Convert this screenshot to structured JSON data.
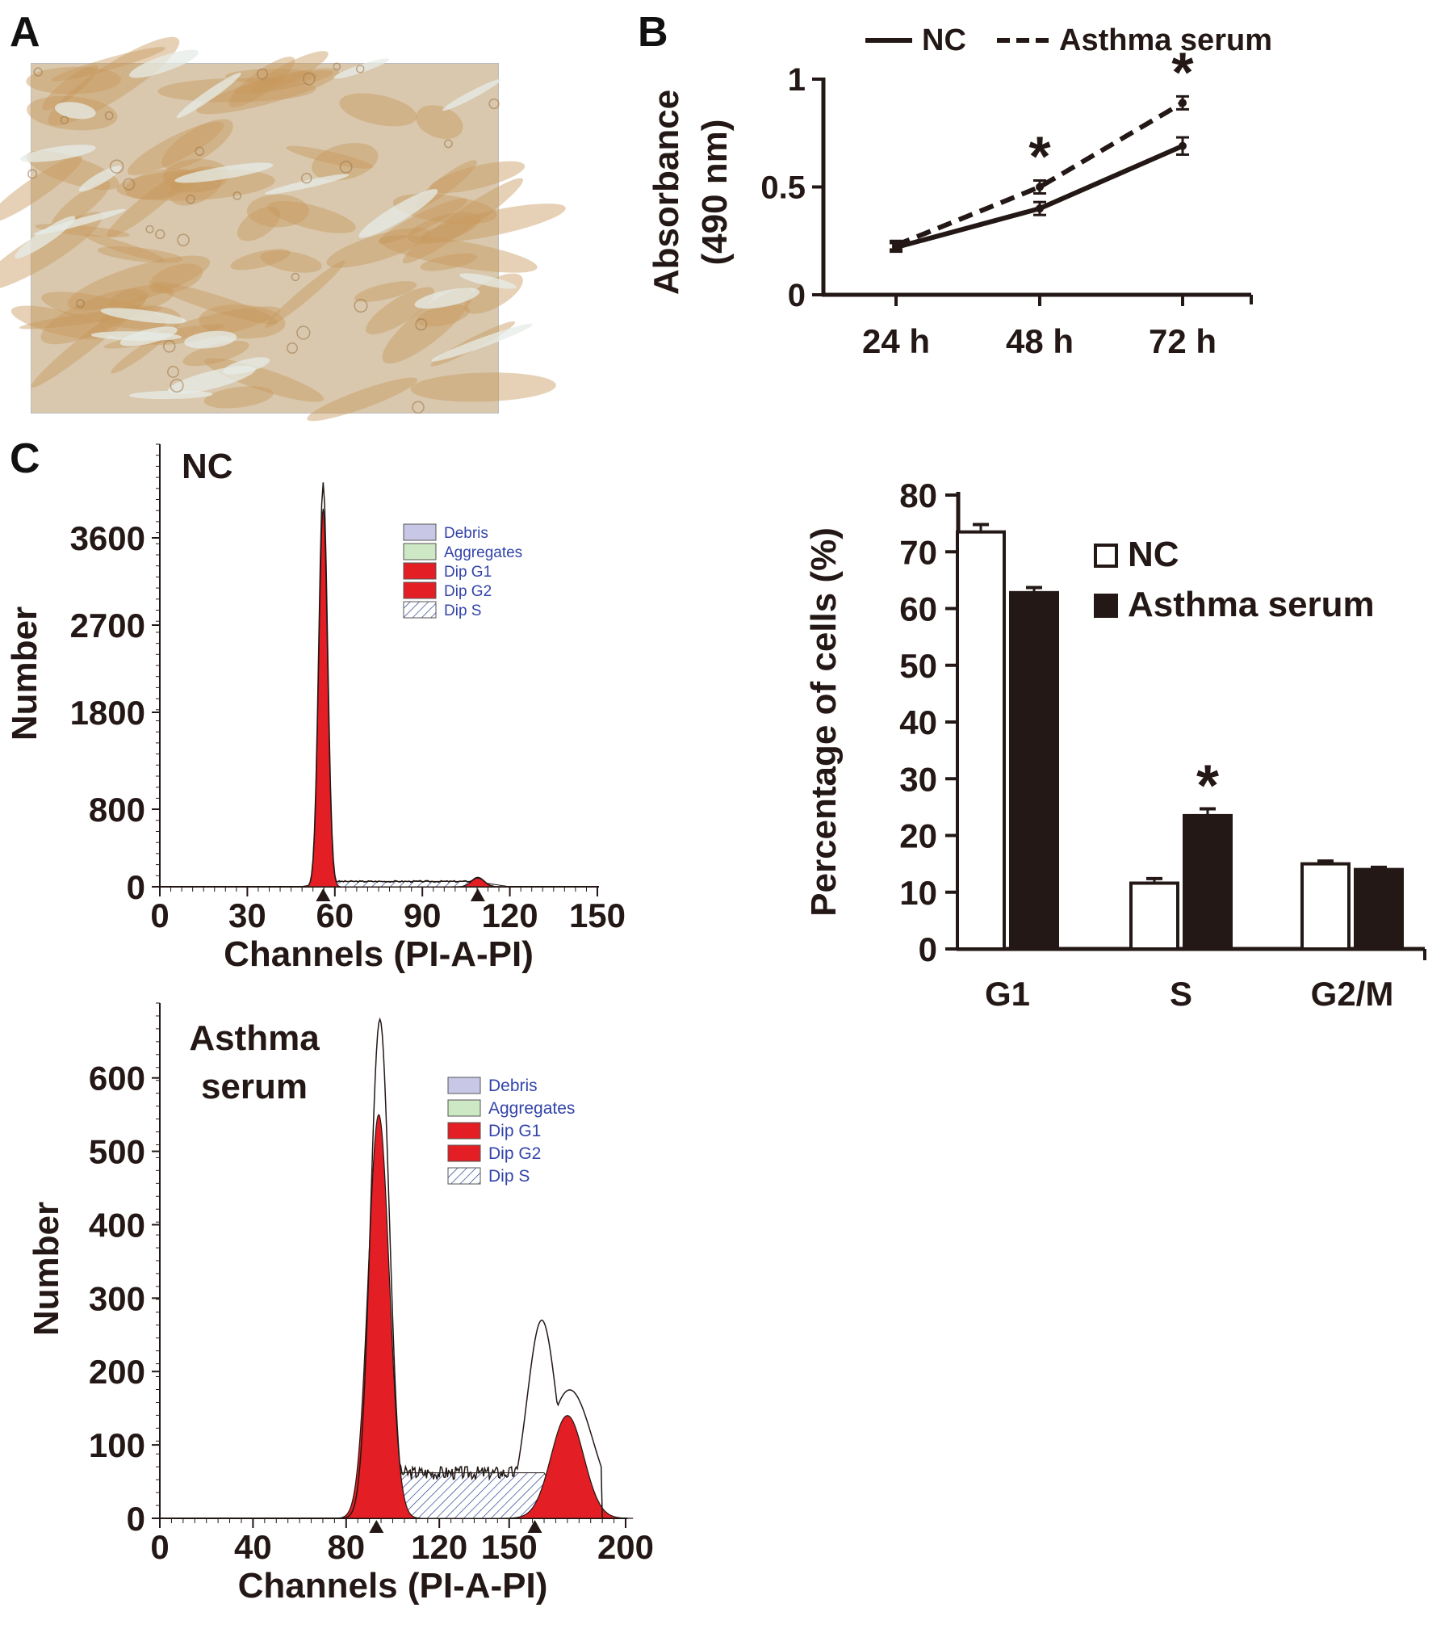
{
  "panels": {
    "A": "A",
    "B": "B",
    "C": "C"
  },
  "photo": {
    "icon": "micrograph-image",
    "base_color": "#d9c8ae",
    "cell_color": "#c79a5e"
  },
  "colors": {
    "ink": "#231815",
    "red": "#e31e24",
    "hatch": "#2a3f8f",
    "debris": "#c8c8e6",
    "aggregates": "#cde8c4",
    "legend_text": "#3344aa"
  },
  "chart_data": [
    {
      "panel": "B",
      "type": "line",
      "categories": [
        "24 h",
        "48 h",
        "72 h"
      ],
      "series": [
        {
          "name": "NC",
          "style": "solid",
          "values": [
            0.22,
            0.4,
            0.69
          ],
          "errors": [
            0.02,
            0.03,
            0.04
          ]
        },
        {
          "name": "Asthma serum",
          "style": "dashed",
          "values": [
            0.23,
            0.5,
            0.89
          ],
          "errors": [
            0.02,
            0.03,
            0.03
          ]
        }
      ],
      "significance": [
        {
          "category": "48 h",
          "mark": "*"
        },
        {
          "category": "72 h",
          "mark": "*"
        }
      ],
      "xlabel": "",
      "ylabel_lines": [
        "Absorbance",
        "(490 nm)"
      ],
      "ylim": [
        0,
        1
      ],
      "yticks": [
        "0",
        "0.5",
        "1"
      ],
      "legend_placement": "top"
    },
    {
      "panel": "C-NC",
      "type": "area",
      "inset_title": [
        "NC"
      ],
      "xlabel": "Channels (PI-A-PI)",
      "ylabel": "Number",
      "xlim": [
        0,
        150
      ],
      "xticks": [
        "0",
        "30",
        "60",
        "90",
        "120",
        "150"
      ],
      "yticks": [
        {
          "label": "0",
          "value": 0
        },
        {
          "label": "800",
          "value": 800
        },
        {
          "label": "1800",
          "value": 1800
        },
        {
          "label": "2700",
          "value": 2700
        },
        {
          "label": "3600",
          "value": 3600
        }
      ],
      "ymax": 4400,
      "peaks": [
        {
          "phase": "Dip G1",
          "center": 56,
          "height": 3900,
          "sigma": 1.5
        },
        {
          "phase": "Dip G2",
          "center": 109,
          "height": 90,
          "sigma": 2.2
        }
      ],
      "s_phase": {
        "from": 60,
        "to": 108,
        "level": 55
      },
      "legend": [
        "Debris",
        "Aggregates",
        "Dip G1",
        "Dip G2",
        "Dip S"
      ],
      "markers": [
        56,
        109
      ]
    },
    {
      "panel": "C-Asthma",
      "type": "area",
      "inset_title": [
        "Asthma",
        "serum"
      ],
      "xlabel": "Channels (PI-A-PI)",
      "ylabel": "Number",
      "xlim": [
        0,
        200
      ],
      "xticks": [
        "0",
        "40",
        "80",
        "120",
        "150",
        "200"
      ],
      "yticks": [
        "0",
        "100",
        "200",
        "300",
        "400",
        "500",
        "600"
      ],
      "ylim": [
        0,
        680
      ],
      "peaks": [
        {
          "phase": "Dip G1",
          "center": 94,
          "height": 550,
          "sigma": 4.5
        },
        {
          "phase": "Dip G2",
          "center": 175,
          "height": 140,
          "sigma": 7
        }
      ],
      "raw_peaks": [
        {
          "center": 94.5,
          "height": 680
        },
        {
          "center": 164,
          "height": 270
        }
      ],
      "s_phase": {
        "from": 100,
        "to": 165,
        "level": 62
      },
      "legend": [
        "Debris",
        "Aggregates",
        "Dip G1",
        "Dip G2",
        "Dip S"
      ],
      "markers": [
        93,
        161
      ]
    },
    {
      "panel": "C-bar",
      "type": "bar",
      "categories": [
        "G1",
        "S",
        "G2/M"
      ],
      "series": [
        {
          "name": "NC",
          "fill": "open",
          "values": [
            73.5,
            11.6,
            15.0
          ],
          "errors": [
            1.3,
            0.8,
            0.5
          ]
        },
        {
          "name": "Asthma serum",
          "fill": "solid",
          "values": [
            62.8,
            23.5,
            14.0
          ],
          "errors": [
            0.9,
            1.2,
            0.4
          ]
        }
      ],
      "significance": [
        {
          "category": "S",
          "mark": "*"
        }
      ],
      "ylabel": "Percentage of cells (%)",
      "xlabel": "",
      "ylim": [
        0,
        80
      ],
      "yticks": [
        "0",
        "10",
        "20",
        "30",
        "40",
        "50",
        "60",
        "70",
        "80"
      ],
      "legend_placement": "top-right"
    }
  ]
}
